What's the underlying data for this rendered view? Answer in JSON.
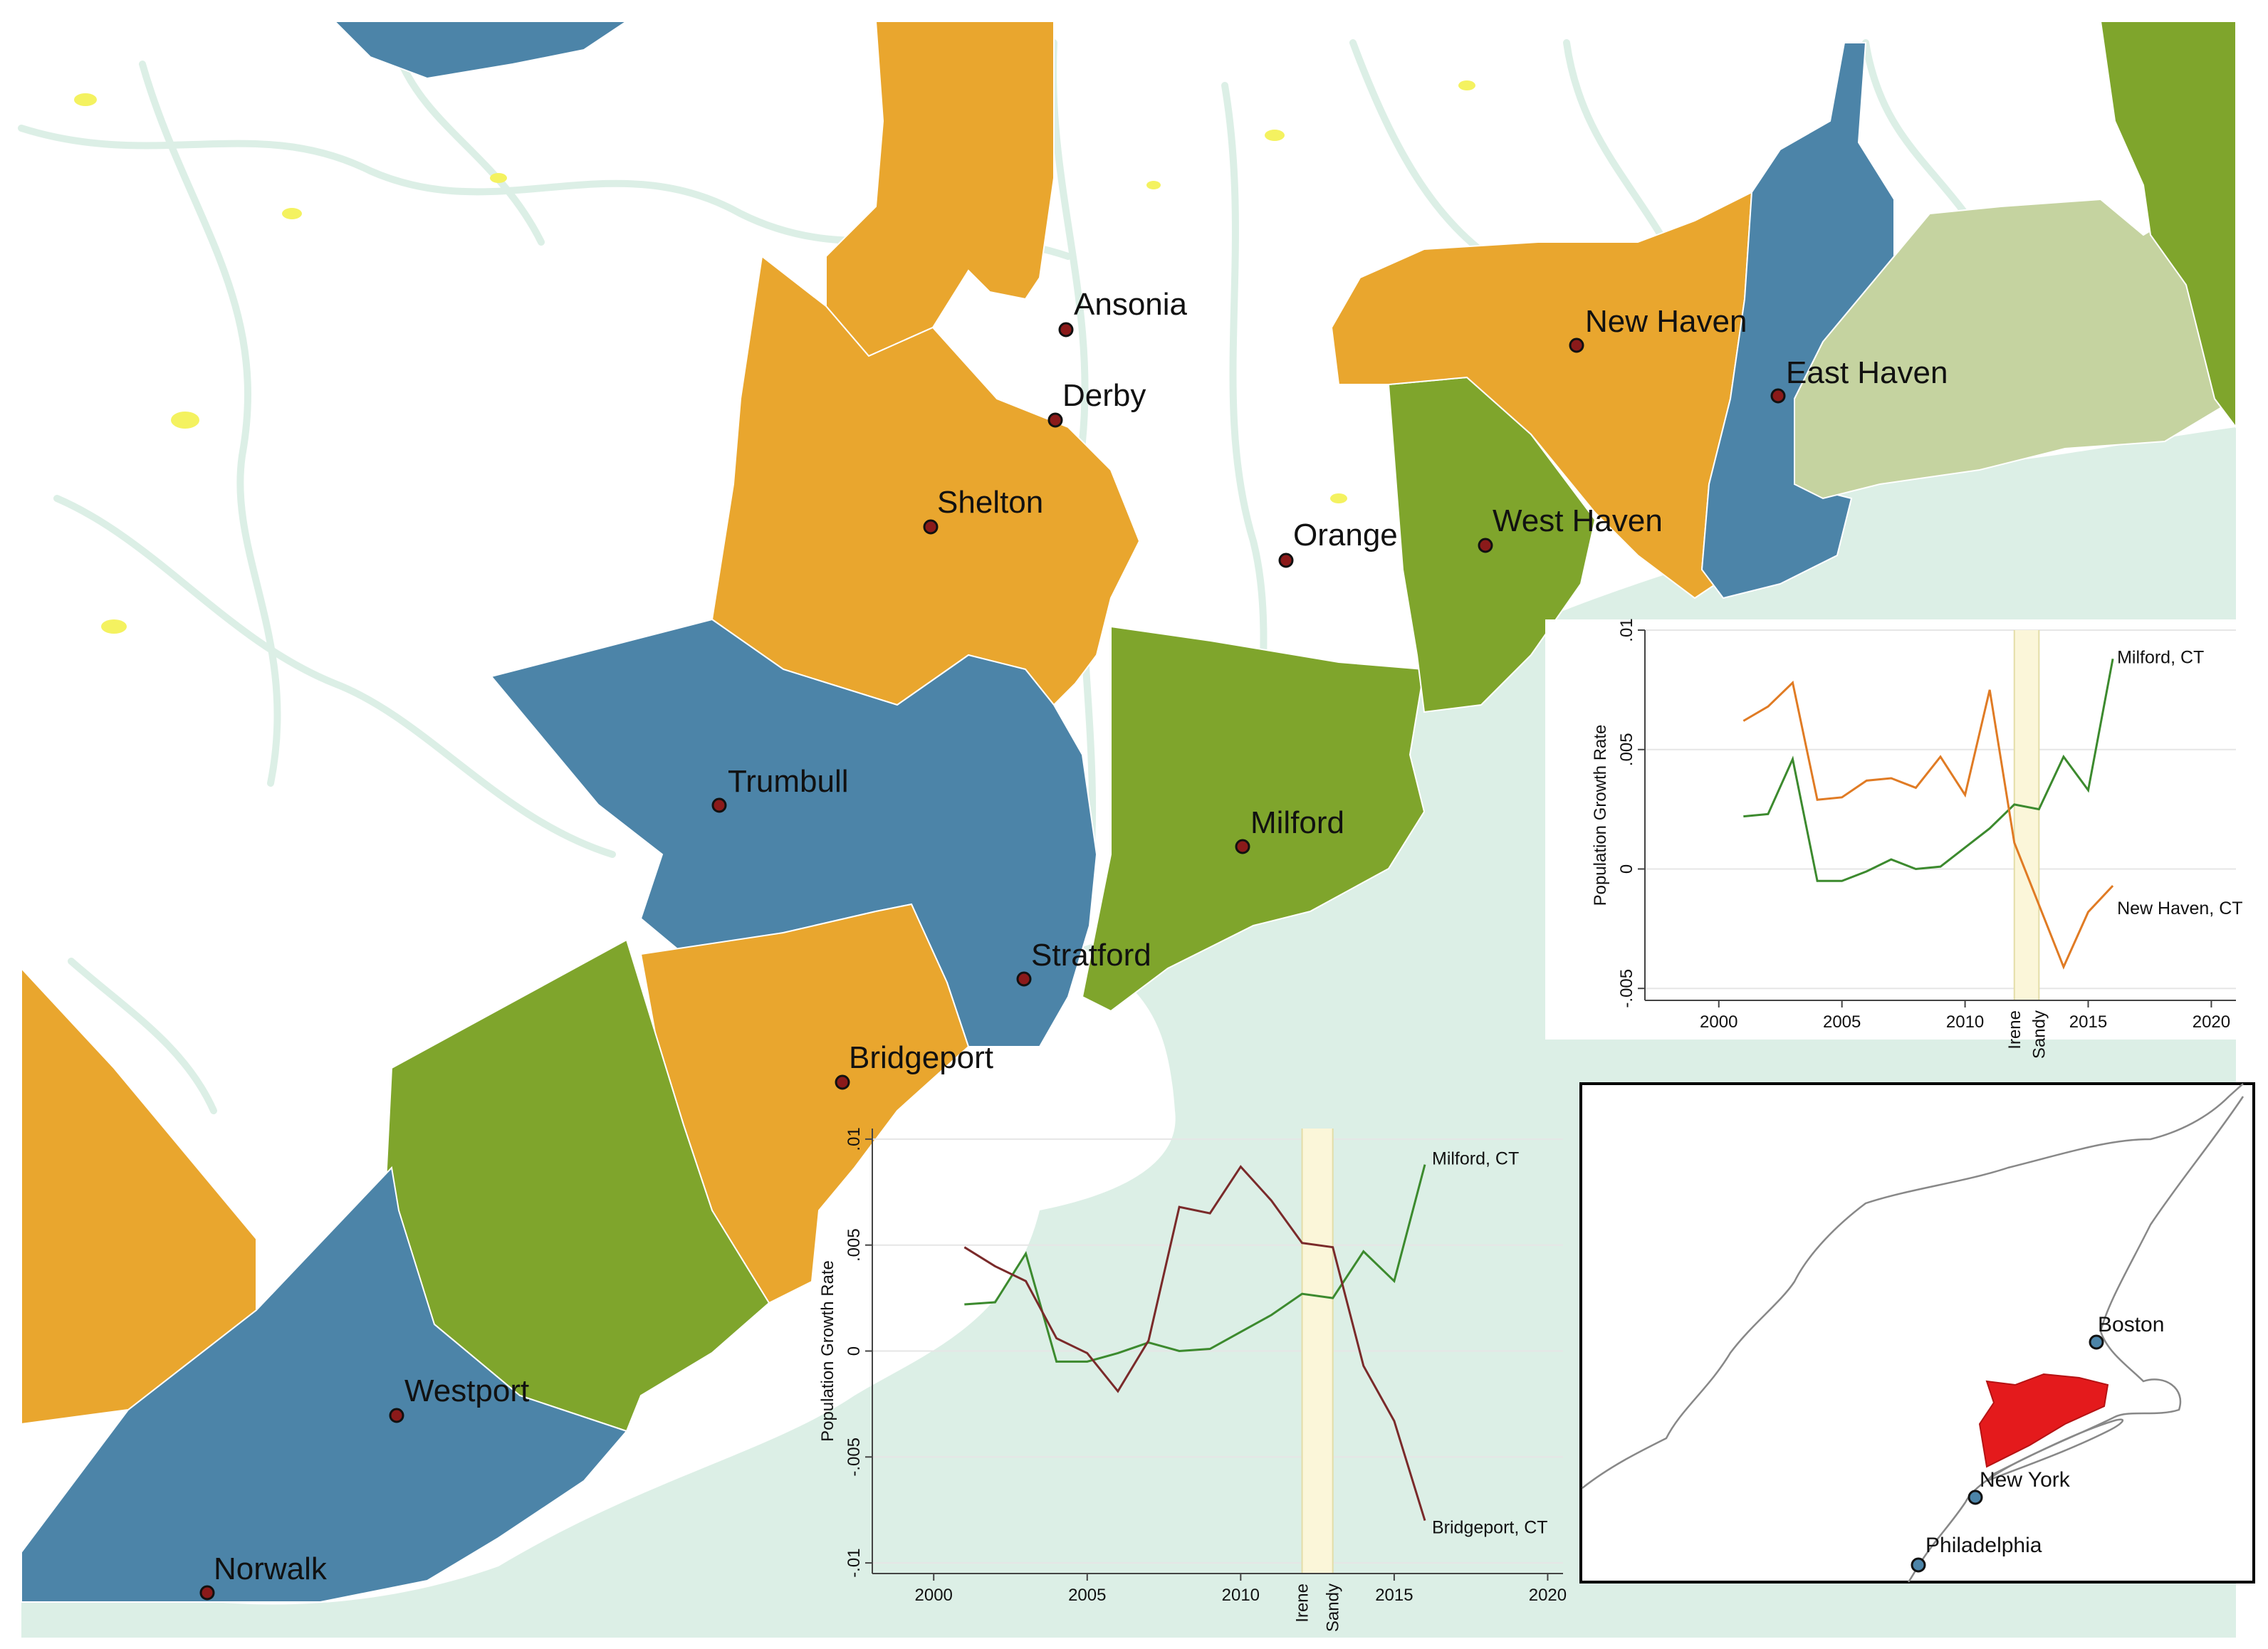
{
  "map": {
    "colors": {
      "orange": "#E9A62E",
      "blue": "#4C84A8",
      "green": "#7FA52C",
      "pale_green": "#C5D3A0",
      "water": "#DCEFE6",
      "ponds": "#F4F260",
      "city_dot": "#8B1A1A"
    },
    "cities": [
      {
        "name": "Ansonia"
      },
      {
        "name": "Derby"
      },
      {
        "name": "New Haven"
      },
      {
        "name": "East Haven"
      },
      {
        "name": "Shelton"
      },
      {
        "name": "Orange"
      },
      {
        "name": "West Haven"
      },
      {
        "name": "Trumbull"
      },
      {
        "name": "Milford"
      },
      {
        "name": "Stratford"
      },
      {
        "name": "Bridgeport"
      },
      {
        "name": "Westport"
      },
      {
        "name": "Norwalk"
      }
    ]
  },
  "chart_data": [
    {
      "type": "line",
      "ylabel": "Population Growth Rate",
      "xlim": [
        1997,
        2021
      ],
      "ylim": [
        -0.0055,
        0.01
      ],
      "x_ticks": [
        "2000",
        "2005",
        "2010",
        "2015",
        "2020"
      ],
      "y_ticks": [
        ".01",
        ".005",
        "0",
        "-.005"
      ],
      "bands": [
        {
          "label": "Irene",
          "x": 2012
        },
        {
          "label": "Sandy",
          "x": 2013
        }
      ],
      "x": [
        2001,
        2002,
        2003,
        2004,
        2005,
        2006,
        2007,
        2008,
        2009,
        2010,
        2011,
        2012,
        2013,
        2014,
        2015,
        2016
      ],
      "series": [
        {
          "name": "Milford, CT",
          "color": "#3C8A2E",
          "values": [
            0.0022,
            0.0023,
            0.0046,
            -0.0005,
            -0.0005,
            -0.0001,
            0.0004,
            0.0,
            0.0001,
            0.0009,
            0.0017,
            0.0027,
            0.0025,
            0.0047,
            0.0033,
            0.0088
          ]
        },
        {
          "name": "New Haven, CT",
          "color": "#E07B24",
          "values": [
            0.0062,
            0.0068,
            0.0078,
            0.0029,
            0.003,
            0.0037,
            0.0038,
            0.0034,
            0.0047,
            0.0031,
            0.0075,
            0.0011,
            -0.0015,
            -0.0041,
            -0.0018,
            -0.0007
          ]
        }
      ]
    },
    {
      "type": "line",
      "ylabel": "Population Growth Rate",
      "xlim": [
        1998,
        2020.5
      ],
      "ylim": [
        -0.0105,
        0.0105
      ],
      "x_ticks": [
        "2000",
        "2005",
        "2010",
        "2015",
        "2020"
      ],
      "y_ticks": [
        ".01",
        ".005",
        "0",
        "-.005",
        "-.01"
      ],
      "bands": [
        {
          "label": "Irene",
          "x": 2012
        },
        {
          "label": "Sandy",
          "x": 2013
        }
      ],
      "x": [
        2001,
        2002,
        2003,
        2004,
        2005,
        2006,
        2007,
        2008,
        2009,
        2010,
        2011,
        2012,
        2013,
        2014,
        2015,
        2016
      ],
      "series": [
        {
          "name": "Milford, CT",
          "color": "#3C8A2E",
          "values": [
            0.0022,
            0.0023,
            0.0046,
            -0.0005,
            -0.0005,
            -0.0001,
            0.0004,
            0.0,
            0.0001,
            0.0009,
            0.0017,
            0.0027,
            0.0025,
            0.0047,
            0.0033,
            0.0088
          ]
        },
        {
          "name": "Bridgeport, CT",
          "color": "#7A2A2A",
          "values": [
            0.0049,
            0.004,
            0.0033,
            0.0006,
            -0.0001,
            -0.0019,
            0.0005,
            0.0068,
            0.0065,
            0.0087,
            0.0071,
            0.0051,
            0.0049,
            -0.0007,
            -0.0033,
            -0.008
          ]
        }
      ]
    }
  ],
  "inset_map": {
    "region_color": "#E41A1C",
    "cities": [
      {
        "name": "Boston"
      },
      {
        "name": "New York"
      },
      {
        "name": "Philadelphia"
      }
    ]
  }
}
